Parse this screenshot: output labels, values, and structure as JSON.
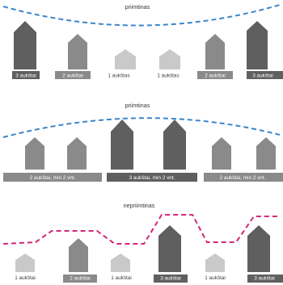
{
  "colors": {
    "acceptable_line": "#3a86c8",
    "unacceptable_line": "#d4267a",
    "dark": "#5f5f5f",
    "mid": "#8a8a8a",
    "light": "#c9c9c9",
    "label_light_text": "#ffffff",
    "label_dark_text": "#3a3a3a"
  },
  "panels": [
    {
      "title": "priimtinas",
      "line_kind": "acceptable",
      "labels": [
        "3 aukštai",
        "2 aukštai",
        "1 aukštas",
        "1 aukštas",
        "2 aukštai",
        "3 aukštai"
      ]
    },
    {
      "title": "priimtinas",
      "line_kind": "acceptable",
      "labels": [
        "2 aukštai, min 2 vnt.",
        "3 aukštai, min 2 vnt.",
        "2 aukštai, min 2 vnt."
      ]
    },
    {
      "title": "nepriimtinas",
      "line_kind": "unacceptable",
      "labels": [
        "1 aukštai",
        "2 aukštai",
        "1 aukštai",
        "3 aukštai",
        "1 aukštai",
        "3 aukštai"
      ]
    }
  ]
}
